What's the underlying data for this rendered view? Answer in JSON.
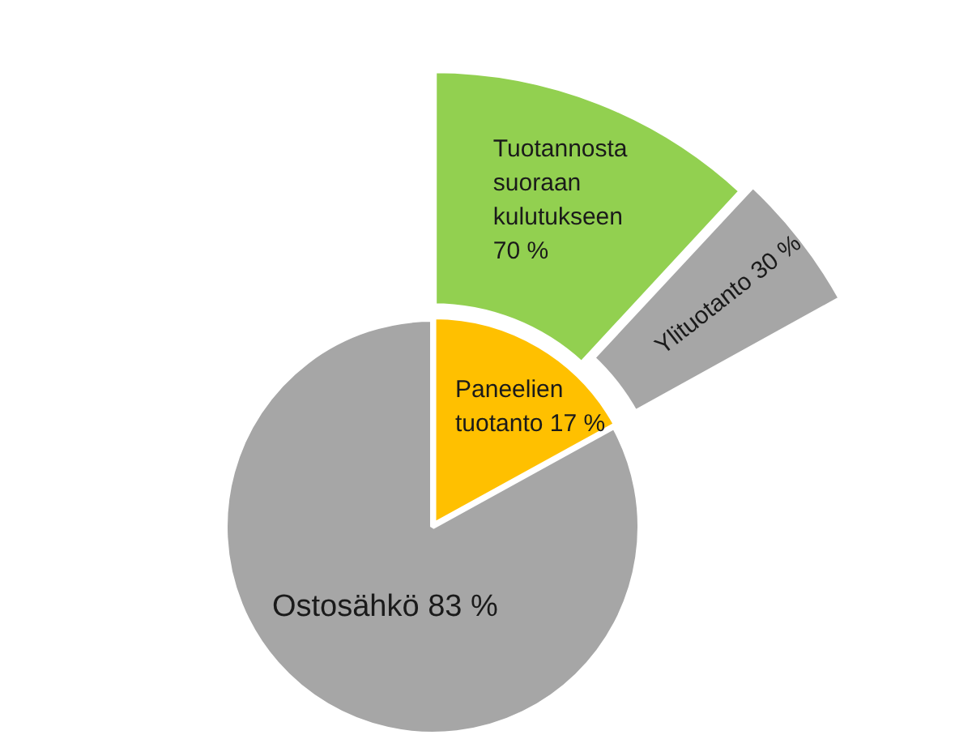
{
  "chart_data": [
    {
      "type": "pie",
      "categories": [
        "Paneelien tuotanto",
        "Ostosähkö"
      ],
      "values": [
        17,
        83
      ],
      "colors": [
        "#ffc000",
        "#a6a6a6"
      ],
      "value_labels": [
        "17 %",
        "83 %"
      ]
    },
    {
      "type": "donut",
      "categories": [
        "Tuotannosta suoraan kulutukseen",
        "Ylituotanto"
      ],
      "values": [
        70,
        30
      ],
      "colors": [
        "#92d050",
        "#a6a6a6"
      ],
      "value_labels": [
        "70 %",
        "30 %"
      ]
    }
  ]
}
